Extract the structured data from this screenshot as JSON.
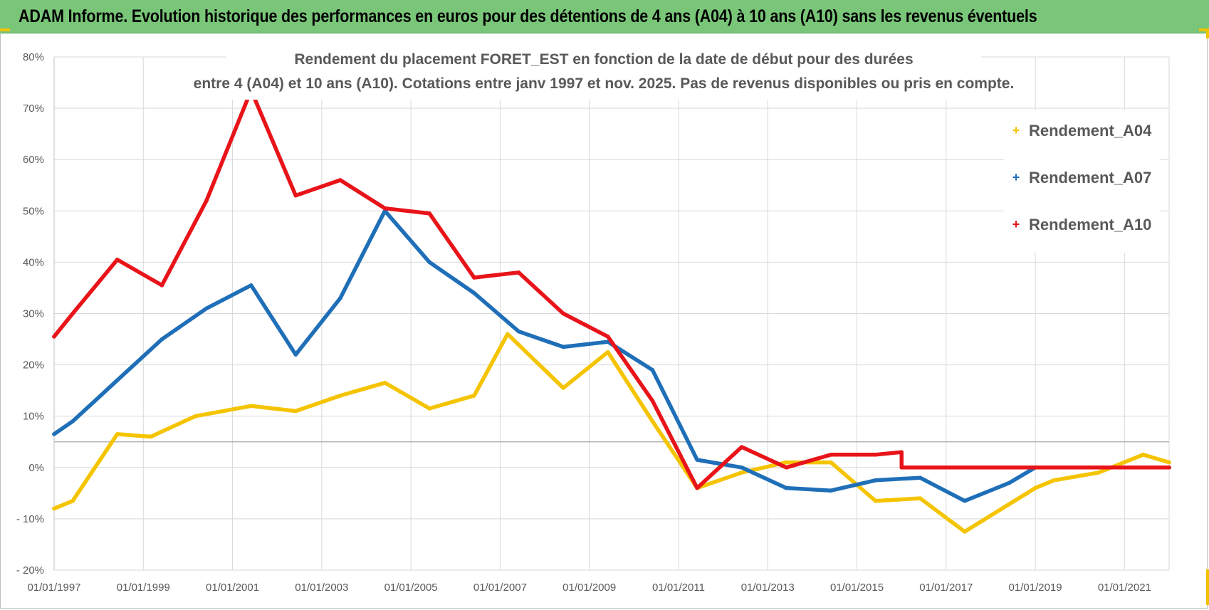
{
  "banner": {
    "title": "ADAM Informe. Evolution historique des performances en euros pour des détentions de 4 ans (A04) à 10 ans (A10) sans les revenus éventuels"
  },
  "colors": {
    "banner_bg": "#79c679",
    "A04": "#f5c400",
    "A07": "#1f6fb8",
    "A10": "#e8141a",
    "grid": "#d9d9d9"
  },
  "chart_data": {
    "type": "line",
    "title_lines": [
      "Rendement du placement FORET_EST en fonction de la date de début pour des durées",
      "entre 4 (A04) et 10 ans (A10).  Cotations entre janv 1997 et nov. 2025. Pas de revenus disponibles ou pris en compte."
    ],
    "xlabel": "",
    "ylabel": "",
    "x_ticks": [
      "01/01/1997",
      "01/01/1999",
      "01/01/2001",
      "01/01/2003",
      "01/01/2005",
      "01/01/2007",
      "01/01/2009",
      "01/01/2011",
      "01/01/2013",
      "01/01/2015",
      "01/01/2017",
      "01/01/2019",
      "01/01/2021"
    ],
    "y_ticks": [
      "80%",
      "70%",
      "60%",
      "50%",
      "40%",
      "30%",
      "20%",
      "10%",
      "0%",
      "- 10%",
      "- 20%"
    ],
    "xlim": [
      "1997-01-01",
      "2022-01-01"
    ],
    "ylim": [
      -20,
      80
    ],
    "grid": true,
    "legend_position": "top-right",
    "series": [
      {
        "name": "Rendement_A04",
        "points": [
          [
            "1997-01-01",
            -8
          ],
          [
            "1997-06-01",
            -6.5
          ],
          [
            "1998-06-01",
            6.5
          ],
          [
            "1999-03-01",
            6
          ],
          [
            "2000-03-01",
            10
          ],
          [
            "2001-06-01",
            12
          ],
          [
            "2002-06-01",
            11
          ],
          [
            "2003-06-01",
            14
          ],
          [
            "2004-06-01",
            16.5
          ],
          [
            "2005-06-01",
            11.5
          ],
          [
            "2006-06-01",
            14
          ],
          [
            "2007-03-01",
            26
          ],
          [
            "2008-06-01",
            15.5
          ],
          [
            "2009-06-01",
            22.5
          ],
          [
            "2010-06-01",
            9
          ],
          [
            "2011-06-01",
            -4
          ],
          [
            "2012-06-01",
            -1
          ],
          [
            "2013-06-01",
            1
          ],
          [
            "2014-06-01",
            1
          ],
          [
            "2015-06-01",
            -6.5
          ],
          [
            "2016-06-01",
            -6
          ],
          [
            "2017-06-01",
            -12.5
          ],
          [
            "2019-01-01",
            -4
          ],
          [
            "2019-06-01",
            -2.5
          ],
          [
            "2020-06-01",
            -1
          ],
          [
            "2021-06-01",
            2.5
          ],
          [
            "2022-01-01",
            1
          ]
        ]
      },
      {
        "name": "Rendement_A07",
        "points": [
          [
            "1997-01-01",
            6.5
          ],
          [
            "1997-06-01",
            9
          ],
          [
            "1998-06-01",
            17
          ],
          [
            "1999-06-01",
            25
          ],
          [
            "2000-06-01",
            31
          ],
          [
            "2001-06-01",
            35.5
          ],
          [
            "2002-06-01",
            22
          ],
          [
            "2003-06-01",
            33
          ],
          [
            "2004-06-01",
            50
          ],
          [
            "2005-06-01",
            40
          ],
          [
            "2006-06-01",
            34
          ],
          [
            "2007-06-01",
            26.5
          ],
          [
            "2008-06-01",
            23.5
          ],
          [
            "2009-06-01",
            24.5
          ],
          [
            "2010-06-01",
            19
          ],
          [
            "2011-06-01",
            1.5
          ],
          [
            "2012-06-01",
            0
          ],
          [
            "2013-06-01",
            -4
          ],
          [
            "2014-06-01",
            -4.5
          ],
          [
            "2015-06-01",
            -2.5
          ],
          [
            "2016-06-01",
            -2
          ],
          [
            "2017-06-01",
            -6.5
          ],
          [
            "2018-06-01",
            -3
          ],
          [
            "2019-01-01",
            0
          ],
          [
            "2022-01-01",
            0
          ]
        ]
      },
      {
        "name": "Rendement_A10",
        "points": [
          [
            "1997-01-01",
            25.5
          ],
          [
            "1997-06-01",
            30
          ],
          [
            "1998-06-01",
            40.5
          ],
          [
            "1999-06-01",
            35.5
          ],
          [
            "2000-06-01",
            52
          ],
          [
            "2001-06-01",
            73.5
          ],
          [
            "2002-06-01",
            53
          ],
          [
            "2003-06-01",
            56
          ],
          [
            "2004-06-01",
            50.5
          ],
          [
            "2005-06-01",
            49.5
          ],
          [
            "2006-06-01",
            37
          ],
          [
            "2007-06-01",
            38
          ],
          [
            "2008-06-01",
            30
          ],
          [
            "2009-06-01",
            25.5
          ],
          [
            "2010-06-01",
            13
          ],
          [
            "2011-06-01",
            -4
          ],
          [
            "2012-06-01",
            4
          ],
          [
            "2013-06-01",
            0
          ],
          [
            "2014-06-01",
            2.5
          ],
          [
            "2015-06-01",
            2.5
          ],
          [
            "2016-01-01",
            3
          ],
          [
            "2016-01-02",
            0
          ],
          [
            "2022-01-01",
            0
          ]
        ]
      }
    ]
  }
}
